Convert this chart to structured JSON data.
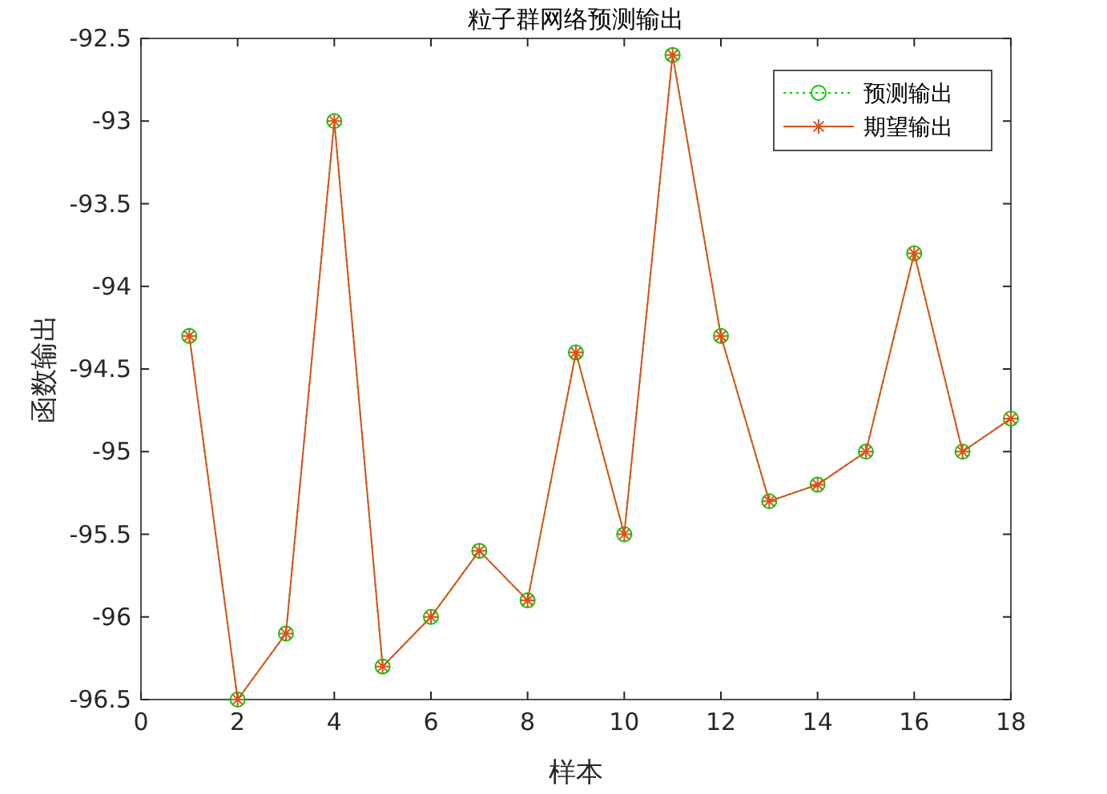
{
  "chart_data": {
    "type": "line",
    "title": "粒子群网络预测输出",
    "xlabel": "样本",
    "ylabel": "函数输出",
    "x": [
      1,
      2,
      3,
      4,
      5,
      6,
      7,
      8,
      9,
      10,
      11,
      12,
      13,
      14,
      15,
      16,
      17,
      18
    ],
    "series": [
      {
        "name": "预测输出",
        "color": "#00cc00",
        "marker": "circle",
        "line_style": "dotted",
        "values": [
          -94.3,
          -96.5,
          -96.1,
          -93.0,
          -96.3,
          -96.0,
          -95.6,
          -95.9,
          -94.4,
          -95.5,
          -92.6,
          -94.3,
          -95.3,
          -95.2,
          -95.0,
          -93.8,
          -95.0,
          -94.8
        ]
      },
      {
        "name": "期望输出",
        "color": "#d95319",
        "marker": "cross",
        "line_style": "solid",
        "values": [
          -94.3,
          -96.5,
          -96.1,
          -93.0,
          -96.3,
          -96.0,
          -95.6,
          -95.9,
          -94.4,
          -95.5,
          -92.6,
          -94.3,
          -95.3,
          -95.2,
          -95.0,
          -93.8,
          -95.0,
          -94.8
        ]
      }
    ],
    "xlim": [
      0,
      18
    ],
    "ylim": [
      -96.5,
      -92.5
    ],
    "xticks": [
      0,
      2,
      4,
      6,
      8,
      10,
      12,
      14,
      16,
      18
    ],
    "yticks": [
      -96.5,
      -96,
      -95.5,
      -95,
      -94.5,
      -94,
      -93.5,
      -93,
      -92.5
    ],
    "grid": false,
    "legend": "top right"
  }
}
